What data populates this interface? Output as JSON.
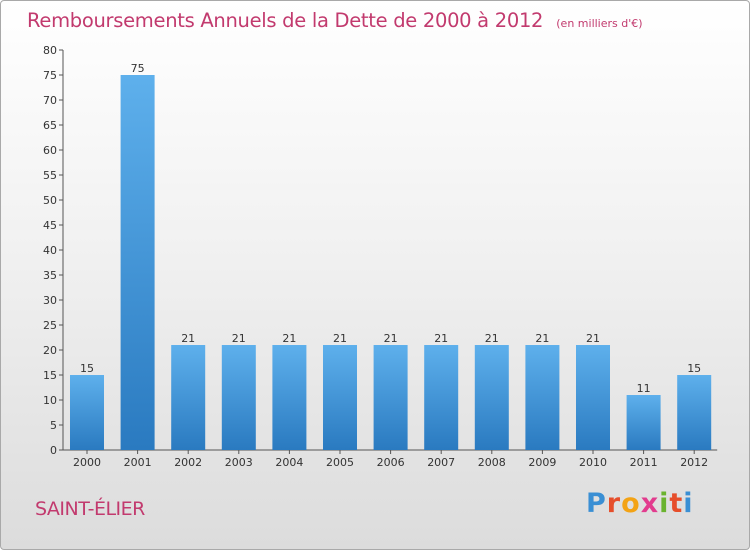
{
  "header": {
    "title": "Remboursements Annuels de la Dette de 2000 à 2012",
    "subtitle": "(en milliers d'€)"
  },
  "footer": {
    "place": "SAINT-ÉLIER",
    "logo_letters": [
      "P",
      "r",
      "o",
      "x",
      "i",
      "t",
      "i"
    ],
    "logo_colors": [
      "#3a8fd4",
      "#e64e2b",
      "#f3a315",
      "#e23c8e",
      "#6ab32e",
      "#e64e2b",
      "#3a8fd4"
    ]
  },
  "colors": {
    "bar_light": "#5eb0ec",
    "bar_dark": "#2a7ac0",
    "title": "#c23a6e"
  },
  "chart_data": {
    "type": "bar",
    "title": "Remboursements Annuels de la Dette de 2000 à 2012",
    "ylabel": "(en milliers d'€)",
    "xlabel": "",
    "categories": [
      "2000",
      "2001",
      "2002",
      "2003",
      "2004",
      "2005",
      "2006",
      "2007",
      "2008",
      "2009",
      "2010",
      "2011",
      "2012"
    ],
    "values": [
      15,
      75,
      21,
      21,
      21,
      21,
      21,
      21,
      21,
      21,
      21,
      11,
      15
    ],
    "ylim": [
      0,
      80
    ],
    "yticks": [
      0,
      5,
      10,
      15,
      20,
      25,
      30,
      35,
      40,
      45,
      50,
      55,
      60,
      65,
      70,
      75,
      80
    ],
    "grid": false
  }
}
